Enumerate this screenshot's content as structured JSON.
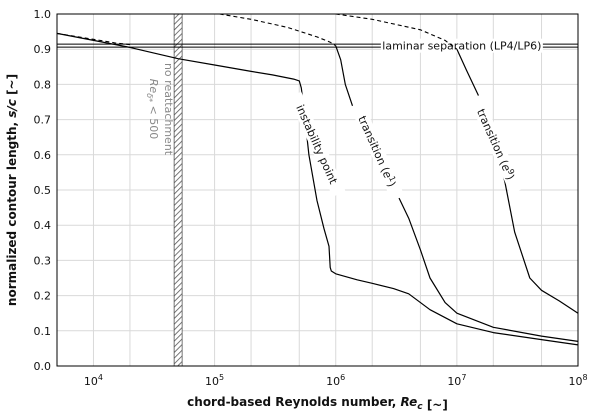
{
  "chart_data": {
    "type": "line",
    "xscale": "log",
    "xlim": [
      5000,
      100000000
    ],
    "ylim": [
      0,
      1
    ],
    "grid": true,
    "xlabel": "chord-based Reynolds number, Re_c [~]",
    "ylabel": "normalized contour length, s/c [~]",
    "x_ticks": [
      {
        "value": 10000,
        "base": "10",
        "exp": "4"
      },
      {
        "value": 100000,
        "base": "10",
        "exp": "5"
      },
      {
        "value": 1000000,
        "base": "10",
        "exp": "6"
      },
      {
        "value": 10000000,
        "base": "10",
        "exp": "7"
      },
      {
        "value": 100000000,
        "base": "10",
        "exp": "8"
      }
    ],
    "y_ticks": [
      "0.0",
      "0.1",
      "0.2",
      "0.3",
      "0.4",
      "0.5",
      "0.6",
      "0.7",
      "0.8",
      "0.9",
      "1.0"
    ],
    "y_tick_values": [
      0,
      0.1,
      0.2,
      0.3,
      0.4,
      0.5,
      0.6,
      0.7,
      0.8,
      0.9,
      1.0
    ],
    "laminar_separation": {
      "label": "laminar separation (LP4/LP6)",
      "y": 0.91
    },
    "no_reattachment": {
      "x": 50000,
      "label_line1": "no reattachment",
      "label_line2": "Re_δ* < 500"
    },
    "series": [
      {
        "name": "instability point",
        "x": [
          5000,
          10000,
          20000,
          50000,
          100000,
          200000,
          300000,
          450000,
          500000,
          520000,
          550000,
          600000,
          700000,
          800000,
          880000,
          900000,
          920000,
          1000000,
          1500000,
          2000000,
          3000000,
          4000000,
          6000000,
          10000000,
          20000000,
          50000000,
          100000000
        ],
        "y": [
          0.945,
          0.925,
          0.905,
          0.873,
          0.855,
          0.837,
          0.827,
          0.815,
          0.81,
          0.79,
          0.72,
          0.6,
          0.47,
          0.39,
          0.34,
          0.28,
          0.27,
          0.262,
          0.245,
          0.235,
          0.22,
          0.205,
          0.16,
          0.12,
          0.095,
          0.075,
          0.06
        ],
        "label_x": 700000,
        "label_y": 0.63
      },
      {
        "name": "transition (e^1)",
        "x": [
          1000000,
          1100000,
          1200000,
          1500000,
          2000000,
          3000000,
          4000000,
          5000000,
          6000000,
          8000000,
          10000000,
          20000000,
          50000000,
          100000000
        ],
        "y": [
          0.91,
          0.87,
          0.8,
          0.7,
          0.615,
          0.51,
          0.42,
          0.33,
          0.25,
          0.18,
          0.15,
          0.11,
          0.085,
          0.07
        ],
        "label_x": 2200000,
        "label_y": 0.61
      },
      {
        "name": "transition (e^9)",
        "x": [
          10000000,
          12000000,
          15000000,
          20000000,
          25000000,
          30000000,
          40000000,
          50000000,
          70000000,
          100000000
        ],
        "y": [
          0.9,
          0.84,
          0.77,
          0.66,
          0.52,
          0.38,
          0.25,
          0.215,
          0.185,
          0.15
        ],
        "label_x": 21000000,
        "label_y": 0.63
      }
    ],
    "dashed_series": [
      {
        "x": [
          5000,
          10000,
          15000,
          20000
        ],
        "y": [
          0.945,
          0.928,
          0.918,
          0.913
        ]
      },
      {
        "x": [
          110000,
          200000,
          400000,
          700000,
          900000,
          1000000
        ],
        "y": [
          1.0,
          0.985,
          0.962,
          0.935,
          0.92,
          0.91
        ]
      },
      {
        "x": [
          1000000,
          2000000,
          5000000,
          8000000,
          10000000
        ],
        "y": [
          1.0,
          0.985,
          0.955,
          0.925,
          0.9
        ]
      }
    ]
  }
}
